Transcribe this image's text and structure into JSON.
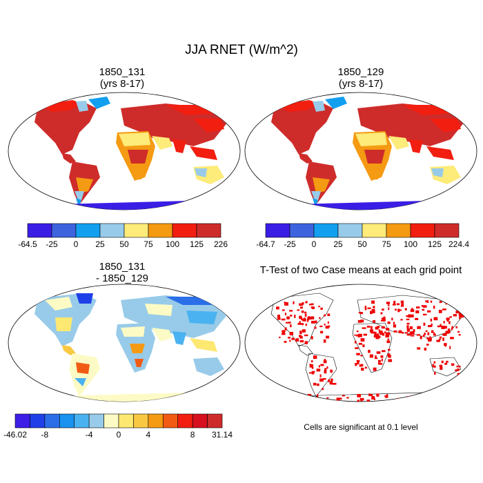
{
  "title": "JJA RNET (W/m^2)",
  "panels": [
    {
      "id": "p1",
      "title_line1": "1850_131",
      "title_line2": "(yrs 8-17)",
      "colorbar": {
        "colors": [
          "#3a1ee6",
          "#3d63df",
          "#129ff0",
          "#98cbe9",
          "#fdeb7a",
          "#f59a13",
          "#f21e10",
          "#ce2c2a"
        ],
        "labels": [
          "-64.5",
          "-25",
          "0",
          "25",
          "50",
          "75",
          "100",
          "125",
          "226"
        ]
      }
    },
    {
      "id": "p2",
      "title_line1": "1850_129",
      "title_line2": "(yrs 8-17)",
      "colorbar": {
        "colors": [
          "#3a1ee6",
          "#3d63df",
          "#129ff0",
          "#98cbe9",
          "#fdeb7a",
          "#f59a13",
          "#f21e10",
          "#ce2c2a"
        ],
        "labels": [
          "-64.7",
          "-25",
          "0",
          "25",
          "50",
          "75",
          "100",
          "125",
          "224.4"
        ]
      }
    },
    {
      "id": "p3",
      "title_line1": "1850_131",
      "title_line2": "- 1850_129",
      "colorbar": {
        "colors": [
          "#3d1ee6",
          "#1f3fe8",
          "#2b6ee8",
          "#1a92f0",
          "#4ab2f0",
          "#98cbe9",
          "#fdfbc5",
          "#fde872",
          "#f9c843",
          "#f59a13",
          "#f25b13",
          "#f21e10",
          "#d6101f",
          "#ce2c2a"
        ],
        "labels": [
          "-46.02",
          "-8",
          "-4",
          "0",
          "4",
          "8",
          "31.14"
        ]
      }
    },
    {
      "id": "p4",
      "title": "T-Test of two Case means at each grid point",
      "note": "Cells are significant at 0.1 level",
      "significant_color": "#ee0000"
    }
  ]
}
